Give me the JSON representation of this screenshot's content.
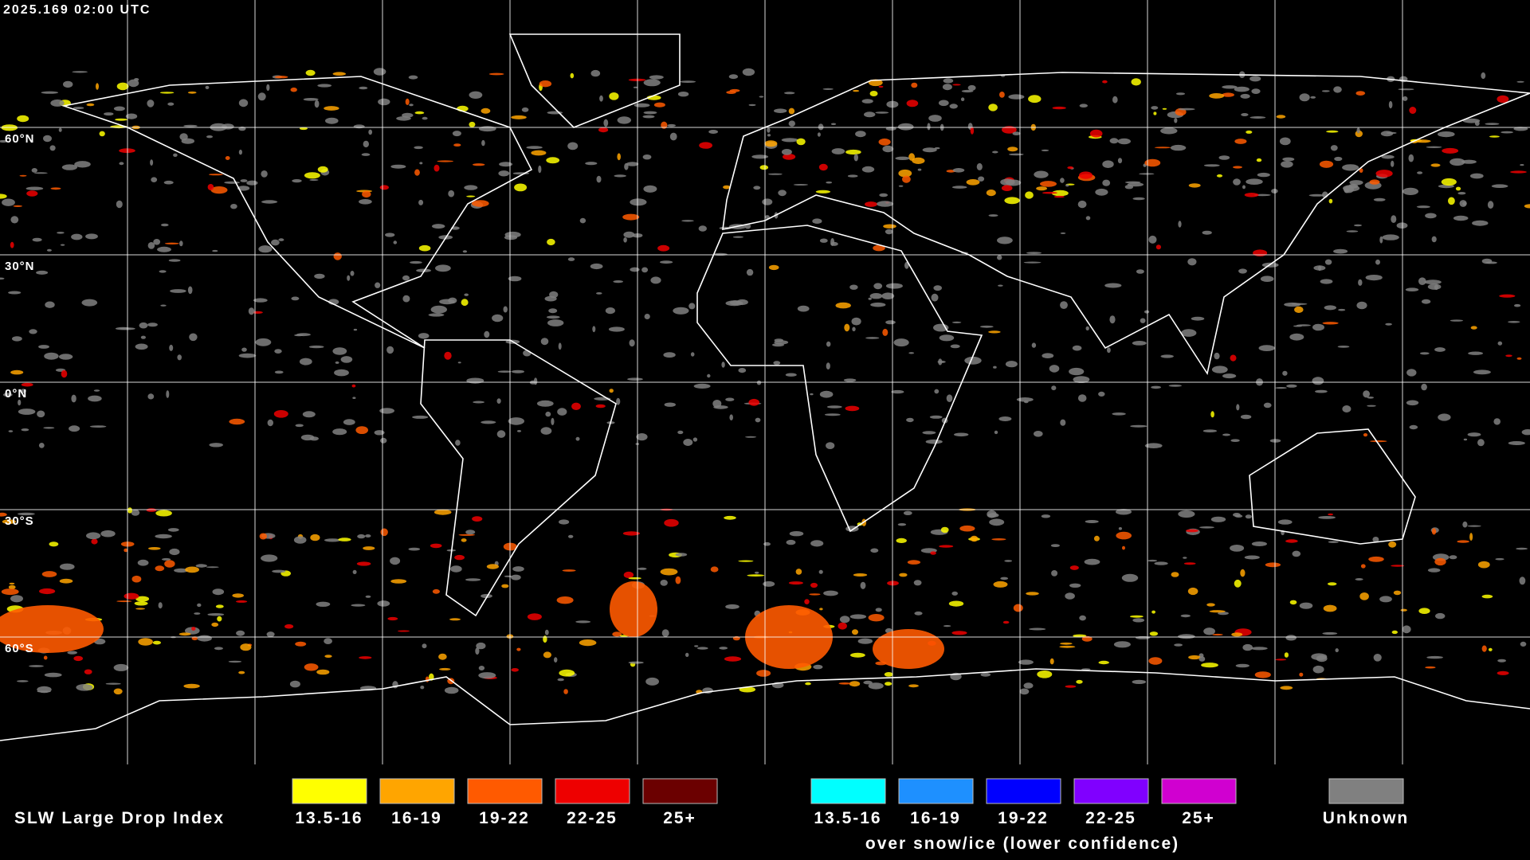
{
  "timestamp": "2025.169 02:00 UTC",
  "map": {
    "lat_labels": [
      "60°N",
      "30°N",
      "0°N",
      "30°S",
      "60°S"
    ]
  },
  "legend": {
    "title": "SLW Large Drop Index",
    "groups": [
      {
        "entries": [
          {
            "label": "13.5-16",
            "color": "#ffff00"
          },
          {
            "label": "16-19",
            "color": "#ffa500"
          },
          {
            "label": "19-22",
            "color": "#ff5a00"
          },
          {
            "label": "22-25",
            "color": "#ee0000"
          },
          {
            "label": "25+",
            "color": "#6b0000"
          }
        ]
      },
      {
        "entries": [
          {
            "label": "13.5-16",
            "color": "#00ffff"
          },
          {
            "label": "16-19",
            "color": "#1e90ff"
          },
          {
            "label": "19-22",
            "color": "#0000ff"
          },
          {
            "label": "22-25",
            "color": "#8000ff"
          },
          {
            "label": "25+",
            "color": "#d000d0"
          }
        ]
      }
    ],
    "subtitle": "over snow/ice (lower confidence)",
    "unknown": {
      "label": "Unknown",
      "color": "#808080"
    }
  }
}
